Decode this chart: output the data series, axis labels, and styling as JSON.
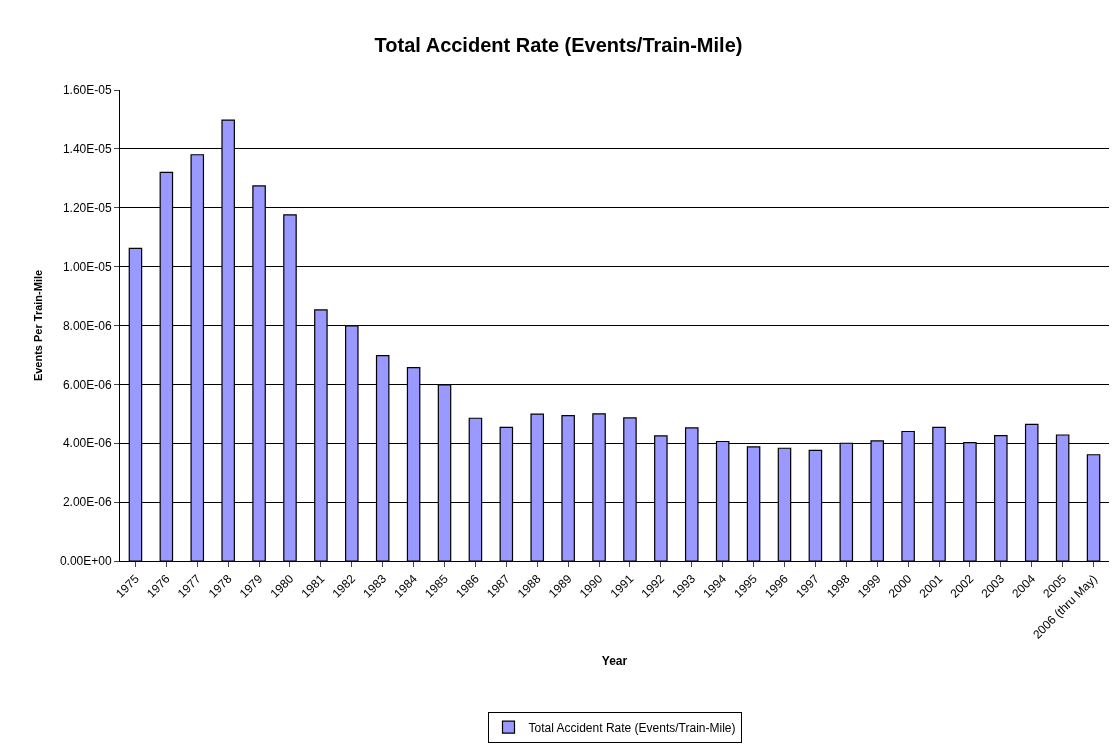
{
  "chart_data": {
    "type": "bar",
    "title": "Total Accident Rate (Events/Train-Mile)",
    "xlabel": "Year",
    "ylabel": "Events Per Train-Mile",
    "categories": [
      "1975",
      "1976",
      "1977",
      "1978",
      "1979",
      "1980",
      "1981",
      "1982",
      "1983",
      "1984",
      "1985",
      "1986",
      "1987",
      "1988",
      "1989",
      "1990",
      "1991",
      "1992",
      "1993",
      "1994",
      "1995",
      "1996",
      "1997",
      "1998",
      "1999",
      "2000",
      "2001",
      "2002",
      "2003",
      "2004",
      "2005",
      "2006 (thru May)"
    ],
    "series": [
      {
        "name": "Total Accident Rate (Events/Train-Mile)",
        "color": "#9999ff",
        "values": [
          1.062e-05,
          1.32e-05,
          1.38e-05,
          1.498e-05,
          1.274e-05,
          1.176e-05,
          8.53e-06,
          7.99e-06,
          6.98e-06,
          6.57e-06,
          5.98e-06,
          4.85e-06,
          4.54e-06,
          4.99e-06,
          4.94e-06,
          5e-06,
          4.86e-06,
          4.25e-06,
          4.52e-06,
          4.06e-06,
          3.88e-06,
          3.83e-06,
          3.76e-06,
          4e-06,
          4.08e-06,
          4.4e-06,
          4.54e-06,
          4.02e-06,
          4.26e-06,
          4.64e-06,
          4.28e-06,
          3.61e-06
        ]
      }
    ],
    "ylim": [
      0,
      1.6e-05
    ],
    "yticks": [
      {
        "value": 0,
        "label": "0.00E+00"
      },
      {
        "value": 2e-06,
        "label": "2.00E-06"
      },
      {
        "value": 4e-06,
        "label": "4.00E-06"
      },
      {
        "value": 6e-06,
        "label": "6.00E-06"
      },
      {
        "value": 8e-06,
        "label": "8.00E-06"
      },
      {
        "value": 1e-05,
        "label": "1.00E-05"
      },
      {
        "value": 1.2e-05,
        "label": "1.20E-05"
      },
      {
        "value": 1.4e-05,
        "label": "1.40E-05"
      },
      {
        "value": 1.6e-05,
        "label": "1.60E-05"
      }
    ],
    "grid": "y",
    "legend": "bottom"
  }
}
